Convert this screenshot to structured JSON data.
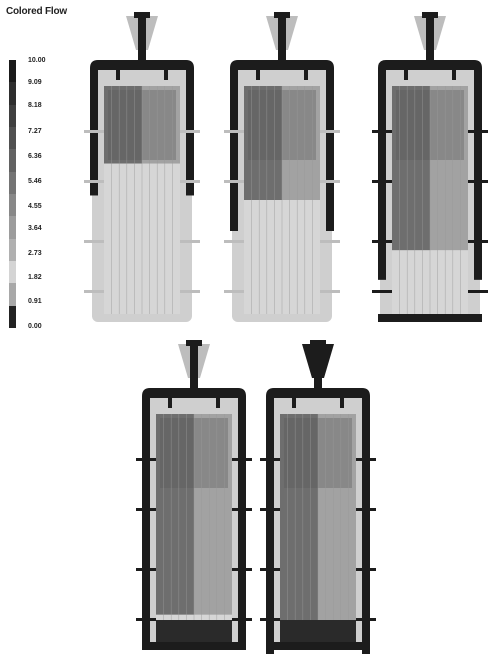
{
  "legend": {
    "title": "Colored Flow",
    "labels": [
      "10.00",
      "9.09",
      "8.18",
      "7.27",
      "6.36",
      "5.46",
      "4.55",
      "3.64",
      "2.73",
      "1.82",
      "0.91",
      "0.00"
    ],
    "colors": [
      "#1a1a1a",
      "#2e2e2e",
      "#3f3f3f",
      "#505050",
      "#626262",
      "#747474",
      "#888888",
      "#9c9c9c",
      "#b0b0b0",
      "#d4d4d4",
      "#a8a8a8",
      "#222222"
    ]
  },
  "panels": [
    {
      "id": "stage-1",
      "fill_level": 0.34
    },
    {
      "id": "stage-2",
      "fill_level": 0.5
    },
    {
      "id": "stage-3",
      "fill_level": 0.72
    },
    {
      "id": "stage-4",
      "fill_level": 0.88
    },
    {
      "id": "stage-5",
      "fill_level": 1.0
    }
  ]
}
